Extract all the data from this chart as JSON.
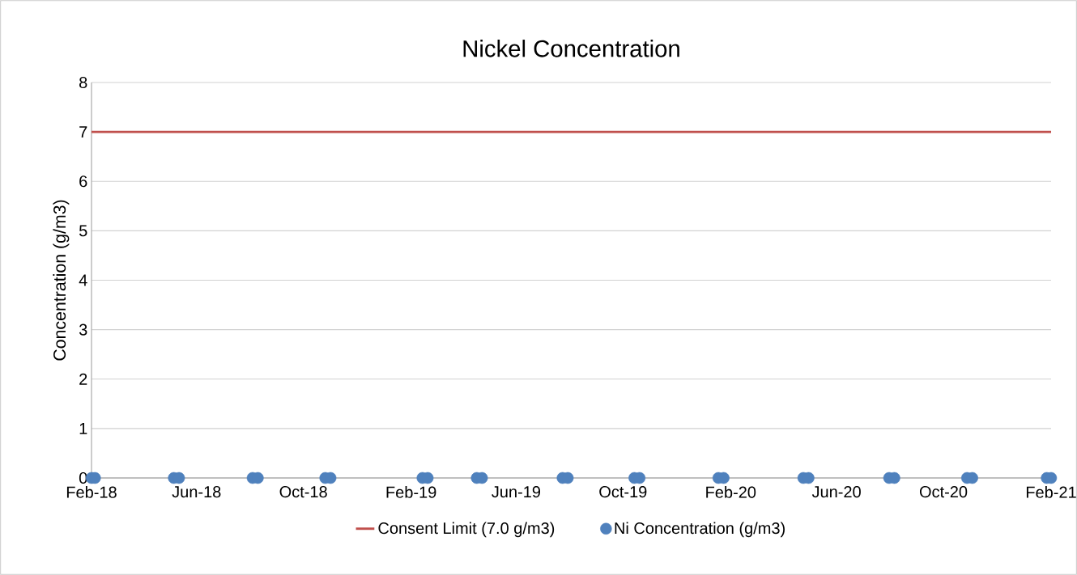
{
  "chart_data": {
    "type": "scatter",
    "title": "Nickel Concentration",
    "ylabel": "Concentration (g/m3)",
    "xlim": [
      "2018-02-01",
      "2021-02-01"
    ],
    "xticks": [
      {
        "value": "2018-02-01",
        "label": "Feb-18"
      },
      {
        "value": "2018-06-01",
        "label": "Jun-18"
      },
      {
        "value": "2018-10-01",
        "label": "Oct-18"
      },
      {
        "value": "2019-02-01",
        "label": "Feb-19"
      },
      {
        "value": "2019-06-01",
        "label": "Jun-19"
      },
      {
        "value": "2019-10-01",
        "label": "Oct-19"
      },
      {
        "value": "2020-02-01",
        "label": "Feb-20"
      },
      {
        "value": "2020-06-01",
        "label": "Jun-20"
      },
      {
        "value": "2020-10-01",
        "label": "Oct-20"
      },
      {
        "value": "2021-02-01",
        "label": "Feb-21"
      }
    ],
    "ylim": [
      0,
      8
    ],
    "yticks": [
      0,
      1,
      2,
      3,
      4,
      5,
      6,
      7,
      8
    ],
    "grid": "y",
    "legend": "bottom",
    "series": [
      {
        "name": "Consent Limit (7.0 g/m3)",
        "type": "line",
        "marker": "none",
        "color": "#c0504d",
        "x": [
          "2018-02-01",
          "2021-02-01"
        ],
        "values": [
          7,
          7
        ]
      },
      {
        "name": "Ni Concentration (g/m3)",
        "marker": "circle",
        "color": "#4f81bd",
        "x": [
          "2018-02-01",
          "2018-02-05",
          "2018-05-06",
          "2018-05-12",
          "2018-08-04",
          "2018-08-10",
          "2018-10-26",
          "2018-11-01",
          "2019-02-14",
          "2019-02-20",
          "2019-04-17",
          "2019-04-23",
          "2019-07-24",
          "2019-07-30",
          "2019-10-14",
          "2019-10-20",
          "2020-01-18",
          "2020-01-24",
          "2020-04-24",
          "2020-04-30",
          "2020-07-31",
          "2020-08-06",
          "2020-10-28",
          "2020-11-03",
          "2021-01-27",
          "2021-02-01"
        ],
        "values": [
          0,
          0,
          0,
          0,
          0,
          0,
          0,
          0,
          0,
          0,
          0,
          0,
          0,
          0,
          0,
          0,
          0,
          0,
          0,
          0,
          0,
          0,
          0,
          0,
          0,
          0
        ]
      }
    ]
  }
}
